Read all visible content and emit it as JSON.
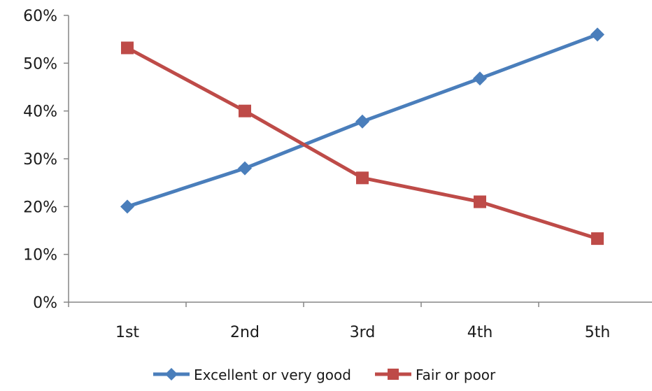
{
  "chart_data": {
    "type": "line",
    "categories": [
      "1st",
      "2nd",
      "3rd",
      "4th",
      "5th"
    ],
    "series": [
      {
        "name": "Excellent or very good",
        "values": [
          20,
          28,
          37.8,
          46.8,
          56
        ],
        "color": "#4a7ebb",
        "marker": "diamond"
      },
      {
        "name": "Fair or poor",
        "values": [
          53.2,
          40,
          26,
          21,
          13.3
        ],
        "color": "#be4b48",
        "marker": "square"
      }
    ],
    "yticks": [
      "0%",
      "10%",
      "20%",
      "30%",
      "40%",
      "50%",
      "60%"
    ],
    "ylim": [
      0,
      60
    ],
    "title": "",
    "xlabel": "",
    "ylabel": "",
    "grid": false,
    "legend_position": "bottom"
  }
}
